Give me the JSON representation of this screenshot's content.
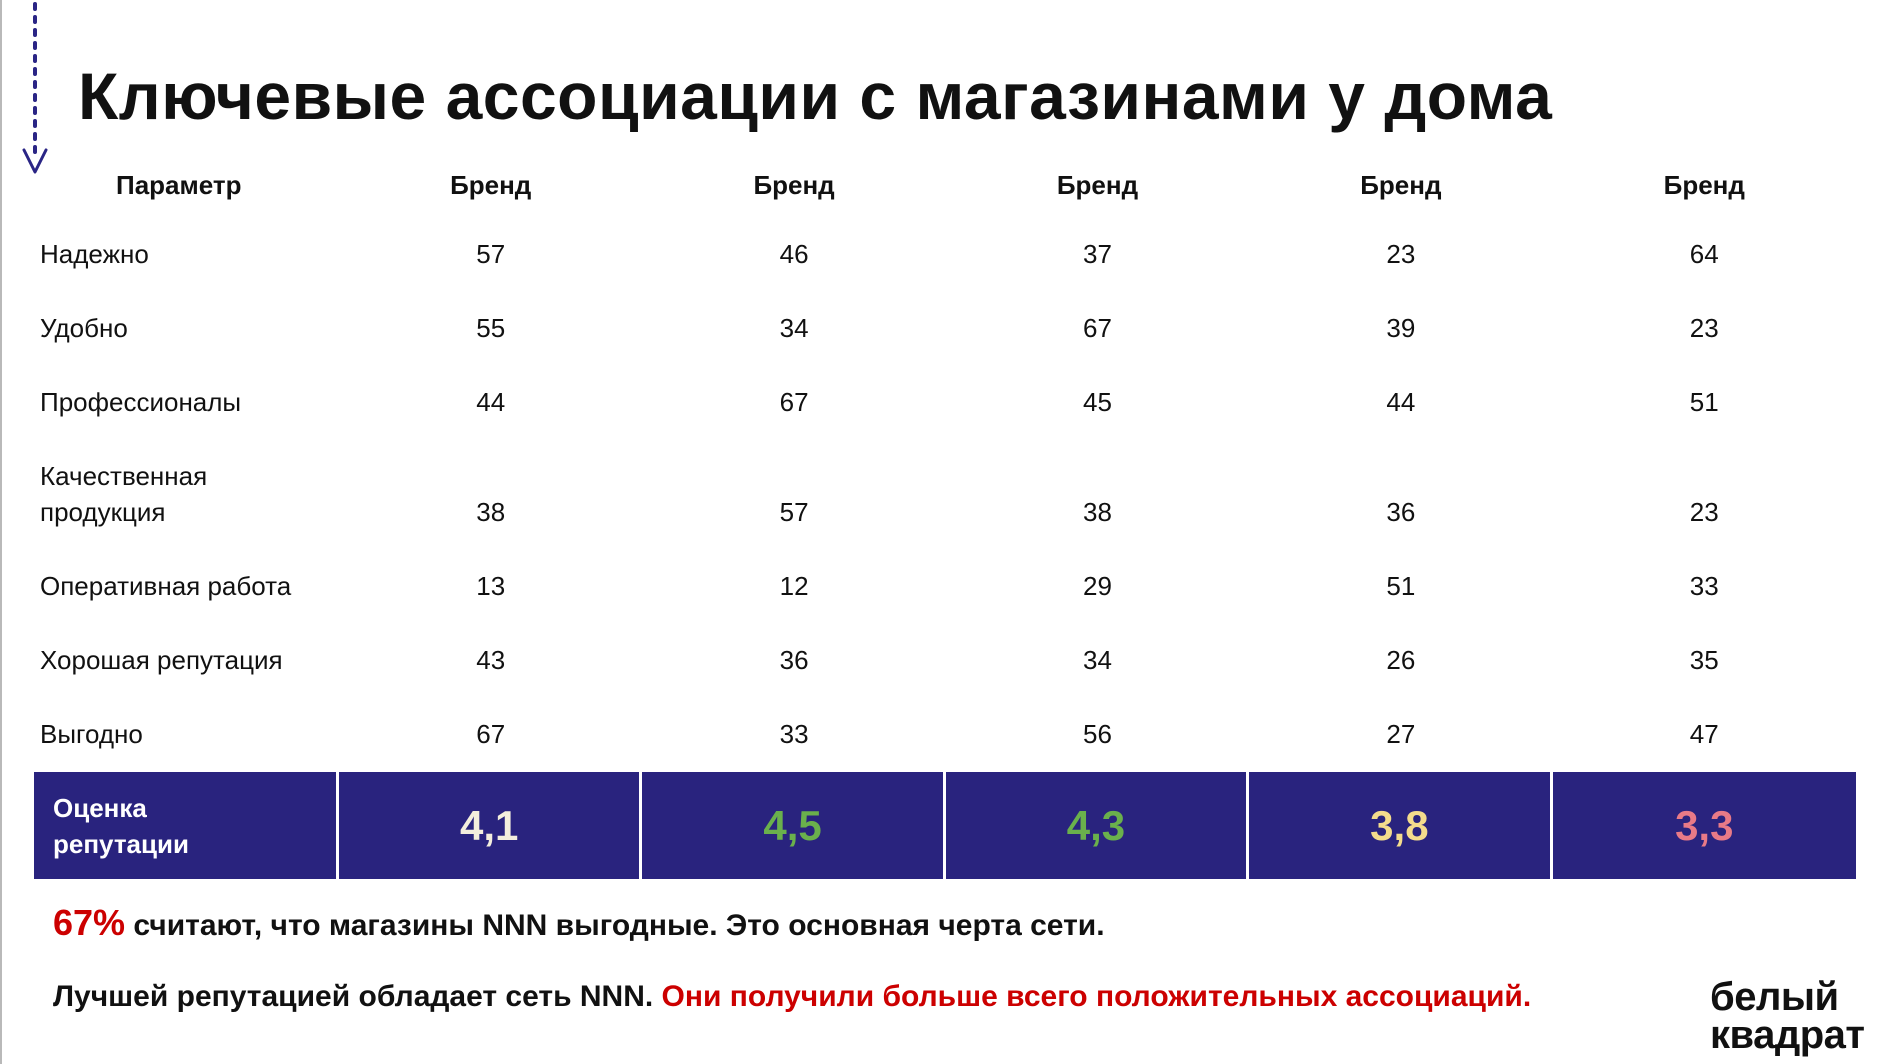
{
  "title": "Ключевые ассоциации с магазинами у дома",
  "table": {
    "header": [
      "Параметр",
      "Бренд",
      "Бренд",
      "Бренд",
      "Бренд",
      "Бренд"
    ],
    "rows": [
      {
        "label": "Надежно",
        "values": [
          "57",
          "46",
          "37",
          "23",
          "64"
        ]
      },
      {
        "label": "Удобно",
        "values": [
          "55",
          "34",
          "67",
          "39",
          "23"
        ]
      },
      {
        "label": "Профессионалы",
        "values": [
          "44",
          "67",
          "45",
          "44",
          "51"
        ]
      },
      {
        "label": "Качественная продукция",
        "values": [
          "38",
          "57",
          "38",
          "36",
          "23"
        ]
      },
      {
        "label": "Оперативная работа",
        "values": [
          "13",
          "12",
          "29",
          "51",
          "33"
        ]
      },
      {
        "label": "Хорошая репутация",
        "values": [
          "43",
          "36",
          "34",
          "26",
          "35"
        ]
      },
      {
        "label": "Выгодно",
        "values": [
          "67",
          "33",
          "56",
          "27",
          "47"
        ]
      }
    ],
    "score": {
      "label": "Оценка репутации",
      "values": [
        "4,1",
        "4,5",
        "4,3",
        "3,8",
        "3,3"
      ],
      "colors": [
        "#f3eedd",
        "#6ab04c",
        "#6ab04c",
        "#f4dc8c",
        "#e87a87"
      ]
    }
  },
  "notes": {
    "line1_highlight": "67%",
    "line1_text": " считают, что магазины NNN выгодные. Это основная черта сети.",
    "line2_text": "Лучшей репутацией обладает сеть NNN. ",
    "line2_highlight": "Они получили больше всего положительных ассоциаций."
  },
  "logo": {
    "line1": "белый",
    "line2": "квадрат"
  },
  "colors": {
    "accent_navy": "#29237e",
    "accent_red": "#cc0000"
  }
}
